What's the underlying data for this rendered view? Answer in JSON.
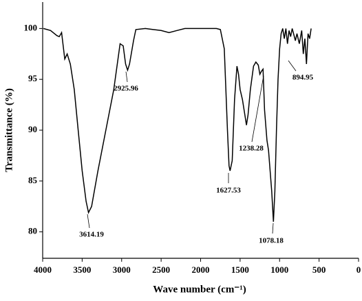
{
  "chart_data": {
    "type": "line",
    "x_label": "Wave number (cm⁻¹)",
    "y_label": "Transmittance (%)",
    "color": "#000000",
    "x": [
      3990,
      3900,
      3820,
      3790,
      3760,
      3720,
      3690,
      3650,
      3600,
      3550,
      3500,
      3450,
      3420,
      3380,
      3300,
      3200,
      3100,
      3020,
      2980,
      2950,
      2925,
      2900,
      2850,
      2820,
      2700,
      2600,
      2500,
      2400,
      2300,
      2200,
      2000,
      1800,
      1750,
      1700,
      1680,
      1660,
      1640,
      1627,
      1600,
      1570,
      1540,
      1520,
      1500,
      1470,
      1440,
      1420,
      1400,
      1370,
      1330,
      1300,
      1270,
      1250,
      1230,
      1210,
      1190,
      1160,
      1140,
      1120,
      1100,
      1078,
      1060,
      1040,
      1020,
      1000,
      980,
      960,
      940,
      920,
      900,
      880,
      860,
      840,
      800,
      780,
      750,
      720,
      700,
      680,
      660,
      640,
      620,
      600
    ],
    "values": [
      100,
      99.8,
      99.3,
      99.2,
      99.6,
      97,
      97.5,
      96.5,
      94,
      90,
      86,
      83,
      81.9,
      82.5,
      86,
      90,
      94,
      98.5,
      98.3,
      96.5,
      95.9,
      96.5,
      98.8,
      99.9,
      100,
      99.9,
      99.8,
      99.6,
      99.8,
      100,
      100,
      100,
      99.9,
      98,
      94,
      90,
      86.5,
      86,
      87,
      93,
      96.3,
      95.5,
      94,
      93,
      91.5,
      90.5,
      91.5,
      94,
      96.3,
      96.7,
      96.4,
      95.5,
      95.8,
      96,
      92,
      89,
      88,
      86,
      84,
      81,
      84,
      90,
      95,
      98,
      99.5,
      100,
      99,
      100,
      98.5,
      99.8,
      99.2,
      100,
      98.8,
      99.5,
      98.5,
      99.8,
      97.5,
      99,
      96.5,
      99.5,
      99,
      100
    ],
    "xlim": [
      4000,
      0
    ],
    "xticks": [
      4000,
      3500,
      3000,
      2500,
      2000,
      1500,
      1000,
      500,
      0
    ],
    "ylim": [
      77.4,
      102.6
    ],
    "yticks": [
      80,
      85,
      90,
      95,
      100
    ],
    "annotations": [
      "3614.19",
      "2925.96",
      "1627.53",
      "1238.28",
      "894.95",
      "1078.18"
    ]
  }
}
